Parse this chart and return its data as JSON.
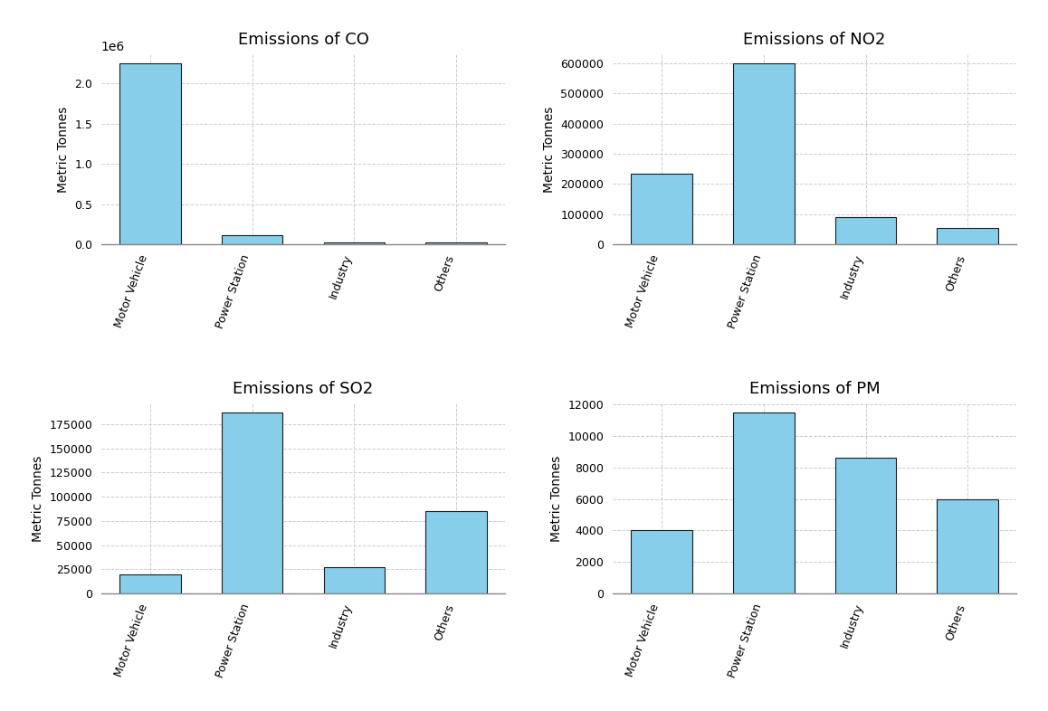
{
  "categories": [
    "Motor Vehicle",
    "Power Station",
    "Industry",
    "Others"
  ],
  "CO": [
    2250000,
    115000,
    20000,
    22000
  ],
  "NO2": [
    235000,
    600000,
    90000,
    55000
  ],
  "SO2": [
    20000,
    187000,
    27000,
    85000
  ],
  "PM": [
    4000,
    11500,
    8600,
    6000
  ],
  "titles": [
    "Emissions of CO",
    "Emissions of NO2",
    "Emissions of SO2",
    "Emissions of PM"
  ],
  "ylabel": "Metric Tonnes",
  "bar_color": "#87CEEB",
  "bar_edge_color": "#1a1a1a",
  "background_color": "#ffffff",
  "grid_color": "#cccccc",
  "fig_size": [
    11.58,
    7.86
  ],
  "dpi": 100
}
